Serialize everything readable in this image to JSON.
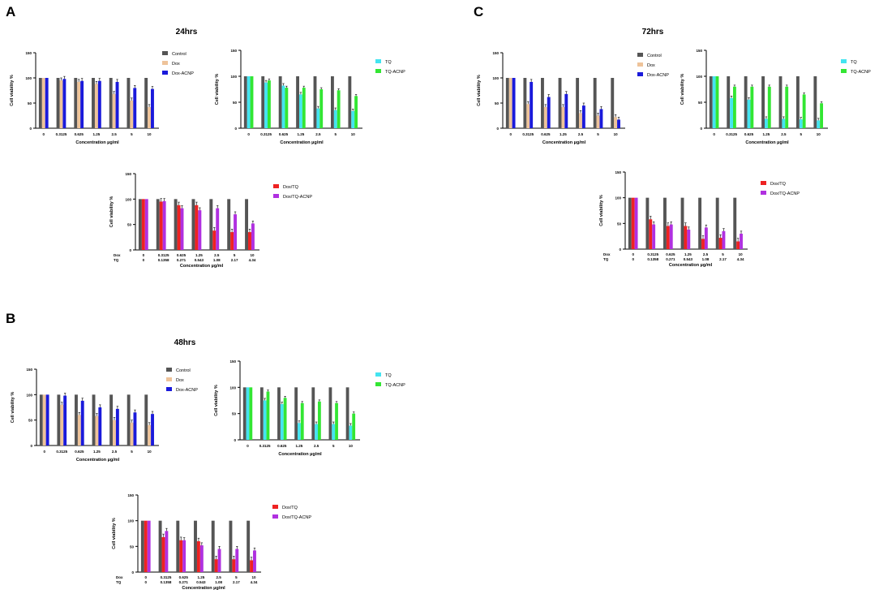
{
  "colors": {
    "Control": "#555555",
    "Dox": "#eec39a",
    "Dox-ACNP": "#1a1adb",
    "TQ": "#44e4f0",
    "TQ-ACNP": "#33e633",
    "Dox/TQ": "#ee2222",
    "Dox/TQ-ACNP": "#b030e0",
    "error": "#000000"
  },
  "panels": [
    {
      "letter": "A",
      "title": "24hrs"
    },
    {
      "letter": "B",
      "title": "48hrs"
    },
    {
      "letter": "C",
      "title": "72hrs"
    }
  ],
  "common": {
    "ylabel": "Cell viability %",
    "xlabel": "Concentration µg/ml",
    "yticks": [
      "0",
      "50",
      "100",
      "150"
    ],
    "ylim": [
      0,
      150
    ],
    "categories": [
      "0",
      "0.3125",
      "0.625",
      "1.25",
      "2.5",
      "5",
      "10"
    ],
    "combo_dox_label": "Dox",
    "combo_tq_label": "TQ",
    "combo_dox": [
      "0",
      "0.3125",
      "0.625",
      "1.25",
      "2.5",
      "5",
      "10"
    ],
    "combo_tq": [
      "0",
      "0.1358",
      "0.271",
      "0.543",
      "1.08",
      "2.17",
      "4.34"
    ]
  },
  "chart_data": [
    {
      "id": "A-dox",
      "panel": "A",
      "type": "bar",
      "series": [
        {
          "name": "Control",
          "values": [
            100,
            100,
            100,
            100,
            100,
            100,
            100
          ]
        },
        {
          "name": "Dox",
          "values": [
            100,
            95,
            92,
            88,
            68,
            55,
            42
          ]
        },
        {
          "name": "Dox-ACNP",
          "values": [
            100,
            98,
            94,
            94,
            92,
            80,
            78
          ]
        }
      ]
    },
    {
      "id": "A-tq",
      "panel": "A",
      "type": "bar",
      "series": [
        {
          "name": "Control",
          "values": [
            100,
            100,
            100,
            100,
            100,
            100,
            100
          ]
        },
        {
          "name": "TQ",
          "values": [
            100,
            88,
            82,
            65,
            38,
            35,
            33
          ]
        },
        {
          "name": "TQ-ACNP",
          "values": [
            100,
            92,
            78,
            78,
            75,
            73,
            62
          ]
        }
      ]
    },
    {
      "id": "A-combo",
      "panel": "A",
      "type": "bar",
      "combo": true,
      "series": [
        {
          "name": "Control",
          "values": [
            100,
            100,
            100,
            100,
            100,
            100,
            100
          ]
        },
        {
          "name": "Dox/TQ",
          "values": [
            100,
            95,
            88,
            88,
            38,
            35,
            35
          ]
        },
        {
          "name": "Dox/TQ-ACNP",
          "values": [
            100,
            96,
            82,
            78,
            82,
            70,
            52
          ]
        }
      ]
    },
    {
      "id": "B-dox",
      "panel": "B",
      "type": "bar",
      "series": [
        {
          "name": "Control",
          "values": [
            100,
            100,
            100,
            100,
            100,
            100,
            100
          ]
        },
        {
          "name": "Dox",
          "values": [
            100,
            80,
            60,
            58,
            50,
            45,
            40
          ]
        },
        {
          "name": "Dox-ACNP",
          "values": [
            100,
            98,
            88,
            75,
            72,
            65,
            62
          ]
        }
      ]
    },
    {
      "id": "B-tq",
      "panel": "B",
      "type": "bar",
      "series": [
        {
          "name": "Control",
          "values": [
            100,
            100,
            100,
            100,
            100,
            100,
            100
          ]
        },
        {
          "name": "TQ",
          "values": [
            100,
            75,
            68,
            32,
            30,
            30,
            27
          ]
        },
        {
          "name": "TQ-ACNP",
          "values": [
            100,
            92,
            80,
            70,
            73,
            70,
            50
          ]
        }
      ]
    },
    {
      "id": "B-combo",
      "panel": "B",
      "type": "bar",
      "combo": true,
      "series": [
        {
          "name": "Control",
          "values": [
            100,
            100,
            100,
            100,
            100,
            100,
            100
          ]
        },
        {
          "name": "Dox/TQ",
          "values": [
            100,
            68,
            62,
            60,
            25,
            25,
            23
          ]
        },
        {
          "name": "Dox/TQ-ACNP",
          "values": [
            100,
            80,
            62,
            52,
            45,
            45,
            42
          ]
        }
      ]
    },
    {
      "id": "C-dox",
      "panel": "C",
      "type": "bar",
      "series": [
        {
          "name": "Control",
          "values": [
            100,
            100,
            100,
            100,
            100,
            100,
            100
          ]
        },
        {
          "name": "Dox",
          "values": [
            100,
            48,
            42,
            42,
            30,
            25,
            22
          ]
        },
        {
          "name": "Dox-ACNP",
          "values": [
            100,
            92,
            62,
            68,
            45,
            38,
            17
          ]
        }
      ]
    },
    {
      "id": "C-tq",
      "panel": "C",
      "type": "bar",
      "series": [
        {
          "name": "Control",
          "values": [
            100,
            100,
            100,
            100,
            100,
            100,
            100
          ]
        },
        {
          "name": "TQ",
          "values": [
            100,
            58,
            55,
            18,
            18,
            17,
            15
          ]
        },
        {
          "name": "TQ-ACNP",
          "values": [
            100,
            80,
            80,
            80,
            80,
            65,
            48
          ]
        }
      ]
    },
    {
      "id": "C-combo",
      "panel": "C",
      "type": "bar",
      "combo": true,
      "series": [
        {
          "name": "Control",
          "values": [
            100,
            100,
            100,
            100,
            100,
            100,
            100
          ]
        },
        {
          "name": "Dox/TQ",
          "values": [
            100,
            58,
            45,
            45,
            20,
            22,
            15
          ]
        },
        {
          "name": "Dox/TQ-ACNP",
          "values": [
            100,
            48,
            48,
            38,
            42,
            35,
            30
          ]
        }
      ]
    }
  ]
}
